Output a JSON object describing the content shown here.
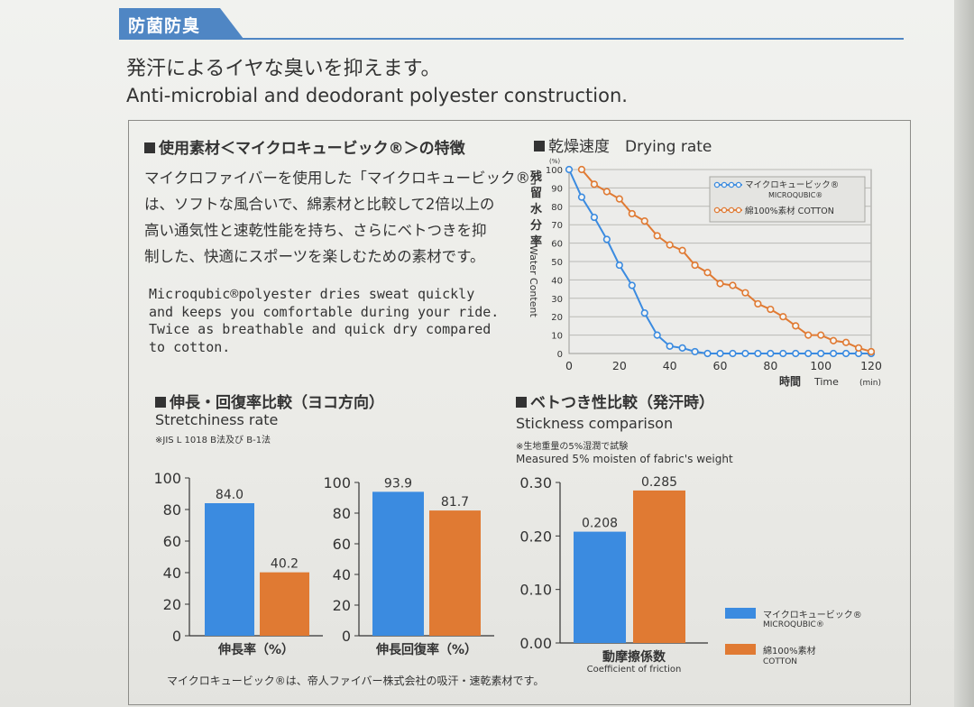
{
  "section_tag": "防菌防臭",
  "lead_ja": "発汗によるイヤな臭いを抑えます。",
  "lead_en": "Anti-microbial and deodorant polyester construction.",
  "features": {
    "heading": "使用素材＜マイクロキュービック®＞の特徴",
    "body_ja": [
      "マイクロファイバーを使用した「マイクロキュービック®」",
      "は、ソフトな風合いで、綿素材と比較して2倍以上の",
      "高い通気性と速乾性能を持ち、さらにベトつきを抑",
      "制した、快適にスポーツを楽しむための素材です。"
    ],
    "body_en": [
      "Microqubic®polyester dries sweat quickly",
      "and keeps you comfortable during your ride.",
      "Twice as breathable and quick dry compared",
      "to cotton."
    ]
  },
  "stretch": {
    "heading": "伸長・回復率比較（ヨコ方向）",
    "subtitle_en": "Stretchiness rate",
    "note": "※JIS L 1018 B法及び B-1法"
  },
  "stick": {
    "heading": "ベトつき性比較（発汗時）",
    "subtitle_en": "Stickness comparison",
    "note_ja": "※生地重量の5%湿潤で試験",
    "note_en": "Measured 5% moisten of fabric's weight"
  },
  "legend": {
    "micro_ja": "マイクロキュービック®",
    "micro_en": "MICROQUBIC®",
    "cotton_ja": "綿100%素材",
    "cotton_en": "COTTON"
  },
  "footer": "マイクロキュービック®は、帝人ファイバー株式会社の吸汗・速乾素材です。",
  "colors": {
    "micro": "#3b8be0",
    "cotton": "#e07a33",
    "tab": "#4f86c4"
  },
  "chart_data": [
    {
      "type": "line",
      "title": "乾燥速度　Drying rate",
      "xlabel": "時間 Time",
      "x_unit": "(min)",
      "ylabel_ja": "残留水分率",
      "ylabel_en": "Water Content",
      "y_unit": "(%)",
      "xlim": [
        0,
        120
      ],
      "ylim": [
        0,
        100
      ],
      "x_ticks": [
        0,
        20,
        40,
        60,
        80,
        100,
        120
      ],
      "y_ticks": [
        0,
        10,
        20,
        30,
        40,
        50,
        60,
        70,
        80,
        90,
        100
      ],
      "grid": true,
      "legend_position": "top-right",
      "series": [
        {
          "name": "マイクロキュービック® MICROQUBIC®",
          "color": "#3b8be0",
          "x": [
            0,
            5,
            10,
            15,
            20,
            25,
            30,
            35,
            40,
            45,
            50,
            55,
            60,
            65,
            70,
            75,
            80,
            85,
            90,
            95,
            100,
            105,
            110,
            115,
            120
          ],
          "y": [
            100,
            85,
            74,
            62,
            48,
            37,
            22,
            10,
            4,
            3,
            1,
            0,
            0,
            0,
            0,
            0,
            0,
            0,
            0,
            0,
            0,
            0,
            0,
            0,
            0
          ]
        },
        {
          "name": "綿100%素材 COTTON",
          "color": "#e07a33",
          "x": [
            5,
            10,
            15,
            20,
            25,
            30,
            35,
            40,
            45,
            50,
            55,
            60,
            65,
            70,
            75,
            80,
            85,
            90,
            95,
            100,
            105,
            110,
            115,
            120
          ],
          "y": [
            100,
            92,
            88,
            84,
            76,
            72,
            64,
            59,
            56,
            48,
            44,
            38,
            37,
            33,
            27,
            24,
            20,
            15,
            10,
            10,
            7,
            6,
            3,
            1
          ]
        }
      ]
    },
    {
      "type": "bar",
      "xlabel": "伸長率（%）",
      "ylim": [
        0,
        100
      ],
      "y_ticks": [
        0,
        20,
        40,
        60,
        80,
        100
      ],
      "series": [
        {
          "name": "マイクロキュービック®",
          "value": 84.0,
          "label": "84.0",
          "color": "#3b8be0"
        },
        {
          "name": "綿100%素材",
          "value": 40.2,
          "label": "40.2",
          "color": "#e07a33"
        }
      ]
    },
    {
      "type": "bar",
      "xlabel": "伸長回復率（%）",
      "ylim": [
        0,
        100
      ],
      "y_ticks": [
        0,
        20,
        40,
        60,
        80,
        100
      ],
      "series": [
        {
          "name": "マイクロキュービック®",
          "value": 93.9,
          "label": "93.9",
          "color": "#3b8be0"
        },
        {
          "name": "綿100%素材",
          "value": 81.7,
          "label": "81.7",
          "color": "#e07a33"
        }
      ]
    },
    {
      "type": "bar",
      "xlabel": "動摩擦係数",
      "xlabel_en": "Coefficient of friction",
      "ylim": [
        0,
        0.3
      ],
      "y_ticks": [
        "0.00",
        "0.10",
        "0.20",
        "0.30"
      ],
      "series": [
        {
          "name": "マイクロキュービック®",
          "value": 0.208,
          "label": "0.208",
          "color": "#3b8be0"
        },
        {
          "name": "綿100%素材",
          "value": 0.285,
          "label": "0.285",
          "color": "#e07a33"
        }
      ]
    }
  ]
}
